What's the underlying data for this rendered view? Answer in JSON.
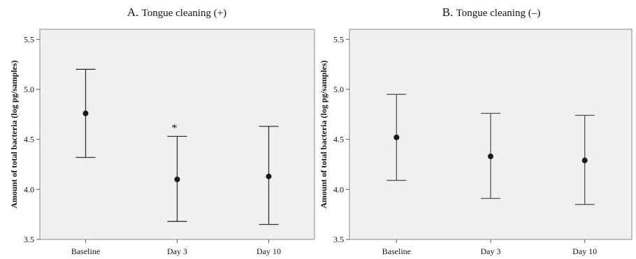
{
  "chart_data": [
    {
      "type": "scatter",
      "title": {
        "letter": "A.",
        "text": "Tongue cleaning (+)"
      },
      "ylabel": "Amount of total bacteria (log pg/samples)",
      "categories": [
        "Baseline",
        "Day 3",
        "Day 10"
      ],
      "ylim": [
        3.5,
        5.6
      ],
      "yticks": [
        "3.5",
        "4.0",
        "4.5",
        "5.0",
        "5.5"
      ],
      "means": [
        4.76,
        4.1,
        4.13
      ],
      "lower": [
        4.32,
        3.68,
        3.65
      ],
      "upper": [
        5.2,
        4.53,
        4.63
      ],
      "annotations": [
        {
          "category": "Day 3",
          "text": "*"
        }
      ],
      "grid": false,
      "plot_background": "#f0f0f0",
      "marker_color": "#1a1a1a",
      "errorbar_color": "#333333"
    },
    {
      "type": "scatter",
      "title": {
        "letter": "B.",
        "text": "Tongue cleaning (–)"
      },
      "ylabel": "Amount of total bacteria (log pg/samples)",
      "categories": [
        "Baseline",
        "Day 3",
        "Day 10"
      ],
      "ylim": [
        3.5,
        5.6
      ],
      "yticks": [
        "3.5",
        "4.0",
        "4.5",
        "5.0",
        "5.5"
      ],
      "means": [
        4.52,
        4.33,
        4.29
      ],
      "lower": [
        4.09,
        3.91,
        3.85
      ],
      "upper": [
        4.95,
        4.76,
        4.74
      ],
      "annotations": [],
      "grid": false,
      "plot_background": "#f0f0f0",
      "marker_color": "#1a1a1a",
      "errorbar_color": "#555555"
    }
  ]
}
